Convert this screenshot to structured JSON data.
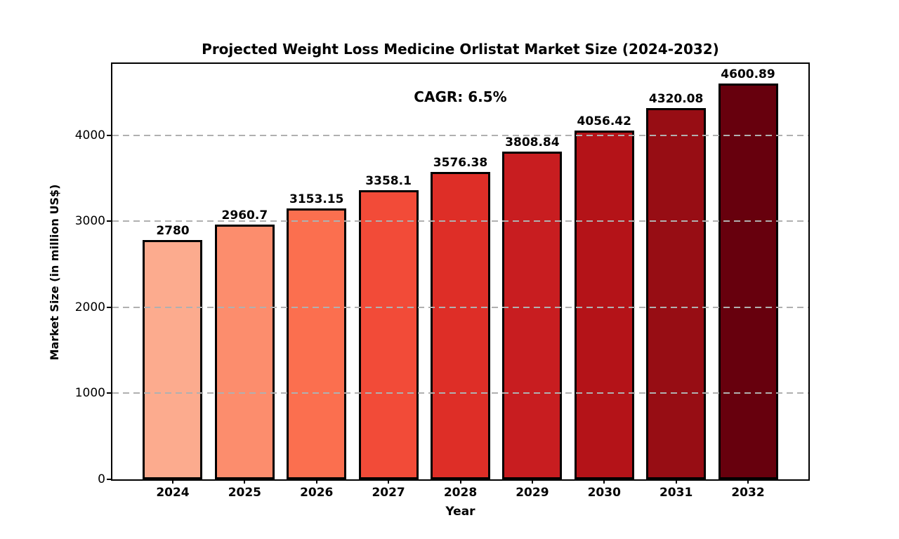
{
  "chart_data": {
    "type": "bar",
    "title": "Projected Weight Loss Medicine Orlistat Market Size (2024-2032)",
    "annotation": "CAGR: 6.5%",
    "xlabel": "Year",
    "ylabel": "Market Size (in million US$)",
    "categories": [
      "2024",
      "2025",
      "2026",
      "2027",
      "2028",
      "2029",
      "2030",
      "2031",
      "2032"
    ],
    "values": [
      2780,
      2960.7,
      3153.15,
      3358.1,
      3576.38,
      3808.84,
      4056.42,
      4320.08,
      4600.89
    ],
    "value_labels": [
      "2780",
      "2960.7",
      "3153.15",
      "3358.1",
      "3576.38",
      "3808.84",
      "4056.42",
      "4320.08",
      "4600.89"
    ],
    "yticks": [
      0,
      1000,
      2000,
      3000,
      4000
    ],
    "ylim": [
      0,
      4830
    ],
    "grid": "y-axis dashed, drawn over bars",
    "legend": "none",
    "bar_colors": [
      "#FCAB8E",
      "#FC8D6D",
      "#FB6F4F",
      "#F24B38",
      "#DE2E27",
      "#C81D20",
      "#B41318",
      "#970D14",
      "#67000D"
    ],
    "bar_edge_color": "#000000",
    "grid_color": "#b0b0b0",
    "text_color": "#000000",
    "background_color": "#ffffff"
  }
}
